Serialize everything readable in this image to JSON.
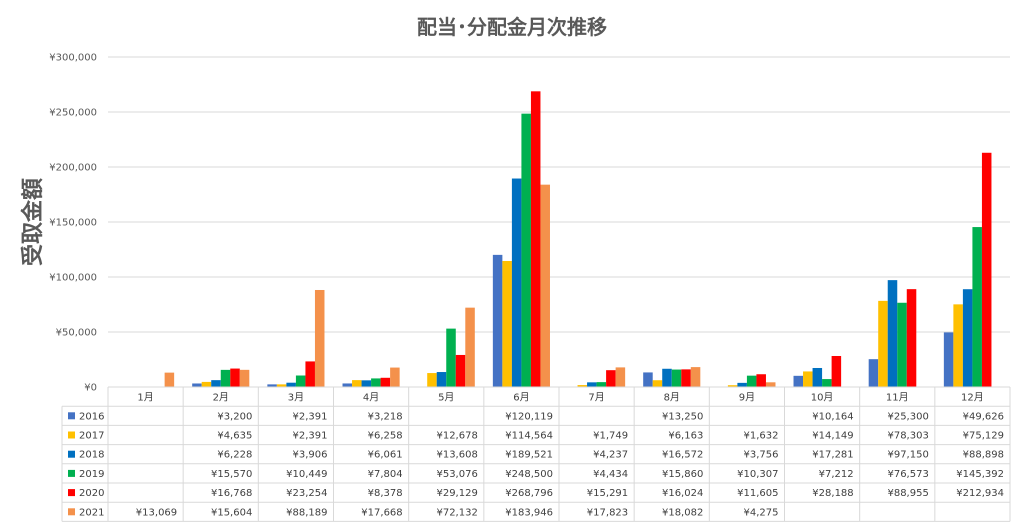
{
  "chart_data": {
    "type": "bar",
    "title": "配当･分配金月次推移",
    "ylabel": "受取金額",
    "xlabel": "",
    "ylim": [
      0,
      300000
    ],
    "yticks": [
      "¥0",
      "¥50,000",
      "¥100,000",
      "¥150,000",
      "¥200,000",
      "¥250,000",
      "¥300,000"
    ],
    "categories": [
      "1月",
      "2月",
      "3月",
      "4月",
      "5月",
      "6月",
      "7月",
      "8月",
      "9月",
      "10月",
      "11月",
      "12月"
    ],
    "grid": true,
    "legend": "data-table",
    "series": [
      {
        "name": "2016",
        "color": "#4472C4",
        "values": [
          null,
          3200,
          2391,
          3218,
          null,
          120119,
          null,
          13250,
          null,
          10164,
          25300,
          49626
        ],
        "labels": [
          "",
          "¥3,200",
          "¥2,391",
          "¥3,218",
          "",
          "¥120,119",
          "",
          "¥13,250",
          "",
          "¥10,164",
          "¥25,300",
          "¥49,626"
        ]
      },
      {
        "name": "2017",
        "color": "#FFC000",
        "values": [
          null,
          4635,
          2391,
          6258,
          12678,
          114564,
          1749,
          6163,
          1632,
          14149,
          78303,
          75129
        ],
        "labels": [
          "",
          "¥4,635",
          "¥2,391",
          "¥6,258",
          "¥12,678",
          "¥114,564",
          "¥1,749",
          "¥6,163",
          "¥1,632",
          "¥14,149",
          "¥78,303",
          "¥75,129"
        ]
      },
      {
        "name": "2018",
        "color": "#0070C0",
        "values": [
          null,
          6228,
          3906,
          6061,
          13608,
          189521,
          4237,
          16572,
          3756,
          17281,
          97150,
          88898
        ],
        "labels": [
          "",
          "¥6,228",
          "¥3,906",
          "¥6,061",
          "¥13,608",
          "¥189,521",
          "¥4,237",
          "¥16,572",
          "¥3,756",
          "¥17,281",
          "¥97,150",
          "¥88,898"
        ]
      },
      {
        "name": "2019",
        "color": "#00B050",
        "values": [
          null,
          15570,
          10449,
          7804,
          53076,
          248500,
          4434,
          15860,
          10307,
          7212,
          76573,
          145392
        ],
        "labels": [
          "",
          "¥15,570",
          "¥10,449",
          "¥7,804",
          "¥53,076",
          "¥248,500",
          "¥4,434",
          "¥15,860",
          "¥10,307",
          "¥7,212",
          "¥76,573",
          "¥145,392"
        ]
      },
      {
        "name": "2020",
        "color": "#FF0000",
        "values": [
          null,
          16768,
          23254,
          8378,
          29129,
          268796,
          15291,
          16024,
          11605,
          28188,
          88955,
          212934
        ],
        "labels": [
          "",
          "¥16,768",
          "¥23,254",
          "¥8,378",
          "¥29,129",
          "¥268,796",
          "¥15,291",
          "¥16,024",
          "¥11,605",
          "¥28,188",
          "¥88,955",
          "¥212,934"
        ]
      },
      {
        "name": "2021",
        "color": "#F4914B",
        "values": [
          13069,
          15604,
          88189,
          17668,
          72132,
          183946,
          17823,
          18082,
          4275,
          null,
          null,
          null
        ],
        "labels": [
          "¥13,069",
          "¥15,604",
          "¥88,189",
          "¥17,668",
          "¥72,132",
          "¥183,946",
          "¥17,823",
          "¥18,082",
          "¥4,275",
          "",
          "",
          ""
        ]
      }
    ]
  }
}
